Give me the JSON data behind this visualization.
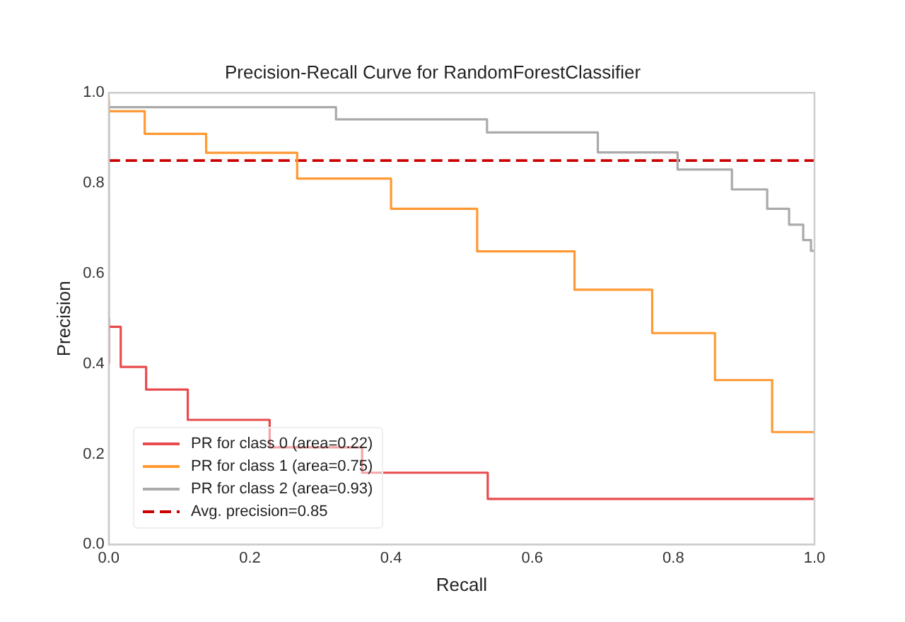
{
  "chart_data": {
    "type": "step",
    "title": "Precision-Recall Curve for RandomForestClassifier",
    "xlabel": "Recall",
    "ylabel": "Precision",
    "xlim": [
      0,
      1
    ],
    "ylim": [
      0,
      1
    ],
    "xticks": [
      {
        "value": 0,
        "label": "0.0"
      },
      0.2,
      0.4,
      0.6,
      0.8,
      {
        "value": 1,
        "label": "1.0"
      }
    ],
    "yticks": [
      {
        "value": 0,
        "label": "0.0"
      },
      0.2,
      0.4,
      0.6,
      0.8,
      {
        "value": 1,
        "label": "1.0"
      }
    ],
    "grid": false,
    "legend": "bottom left",
    "line_style": "solid",
    "marker": "none",
    "series": [
      {
        "name": "PR for class 0 (area=0.22)",
        "color": "#e84b4d",
        "x": [
          0,
          0,
          0,
          0.017,
          0.053,
          0.112,
          0.228,
          0.359,
          0.537,
          0.785,
          1.0
        ],
        "values": [
          0.4,
          0.5,
          0.455,
          0.482,
          0.393,
          0.343,
          0.276,
          0.215,
          0.159,
          0.101,
          0.101
        ]
      },
      {
        "name": "PR for class 1 (area=0.75)",
        "color": "#ff9933",
        "x": [
          0,
          0.051,
          0.138,
          0.267,
          0.4,
          0.522,
          0.66,
          0.77,
          0.859,
          0.94,
          0.982,
          1.0
        ],
        "values": [
          0.986,
          0.959,
          0.909,
          0.867,
          0.81,
          0.743,
          0.649,
          0.564,
          0.468,
          0.364,
          0.249,
          0.249
        ]
      },
      {
        "name": "PR for class 2 (area=0.93)",
        "color": "#aaaaaa",
        "x": [
          0,
          0,
          0.322,
          0.536,
          0.693,
          0.806,
          0.883,
          0.933,
          0.964,
          0.984,
          0.995,
          1.0
        ],
        "values": [
          0.4,
          0.984,
          0.968,
          0.941,
          0.912,
          0.868,
          0.83,
          0.786,
          0.743,
          0.708,
          0.674,
          0.65
        ]
      }
    ],
    "ref_lines": [
      {
        "axis": "y",
        "value": 0.85,
        "label": "Avg. precision=0.85",
        "color": "#cc0000",
        "line_style": "dashed"
      }
    ]
  }
}
